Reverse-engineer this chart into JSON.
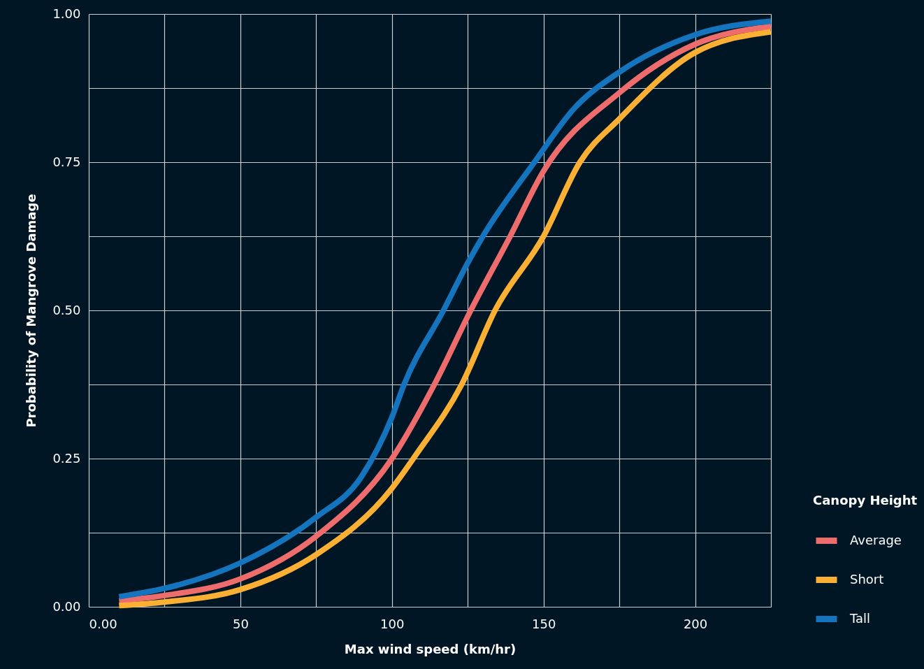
{
  "chart_data": {
    "type": "line",
    "xlabel": "Max wind speed (km/hr)",
    "ylabel": "Probability of Mangrove Damage",
    "legend_title": "Canopy Height",
    "legend": "bottom right",
    "grid": true,
    "line_style": "solid",
    "marker": "none",
    "xlim": [
      0,
      225
    ],
    "xticks": [
      {
        "value": 0,
        "label": "0.00"
      },
      {
        "value": 25,
        "label": null
      },
      50,
      {
        "value": 75,
        "label": null
      },
      100,
      {
        "value": 125,
        "label": null
      },
      150,
      {
        "value": 175,
        "label": null
      },
      200,
      {
        "value": 225,
        "label": null
      }
    ],
    "ylim": [
      0,
      1
    ],
    "yticks": [
      {
        "value": 0,
        "label": "0.00"
      },
      {
        "value": 0.125,
        "label": null
      },
      0.25,
      {
        "value": 0.375,
        "label": null
      },
      {
        "value": 0.5,
        "label": "0.50"
      },
      {
        "value": 0.625,
        "label": null
      },
      0.75,
      {
        "value": 0.875,
        "label": null
      },
      {
        "value": 1,
        "label": "1.00"
      }
    ],
    "series": [
      {
        "name": "Average",
        "color": "#ef6c6c",
        "x": [
          10,
          25,
          50,
          75,
          100,
          114,
          126,
          139,
          150,
          175,
          200,
          225
        ],
        "values": [
          0.01,
          0.019,
          0.047,
          0.119,
          0.25,
          0.375,
          0.5,
          0.625,
          0.735,
          0.867,
          0.949,
          0.979
        ]
      },
      {
        "name": "Short",
        "color": "#fbb034",
        "x": [
          10,
          25,
          50,
          75,
          100,
          108,
          123,
          134,
          150,
          162,
          175,
          200,
          225
        ],
        "values": [
          0.002,
          0.008,
          0.029,
          0.088,
          0.2,
          0.257,
          0.375,
          0.5,
          0.625,
          0.75,
          0.823,
          0.935,
          0.97
        ]
      },
      {
        "name": "Tall",
        "color": "#1474bd",
        "x": [
          10,
          25,
          50,
          75,
          90,
          100,
          104,
          117,
          125,
          130,
          147,
          160,
          175,
          200,
          225
        ],
        "values": [
          0.017,
          0.031,
          0.074,
          0.151,
          0.22,
          0.32,
          0.375,
          0.5,
          0.58,
          0.625,
          0.75,
          0.84,
          0.902,
          0.965,
          0.988
        ]
      }
    ]
  }
}
